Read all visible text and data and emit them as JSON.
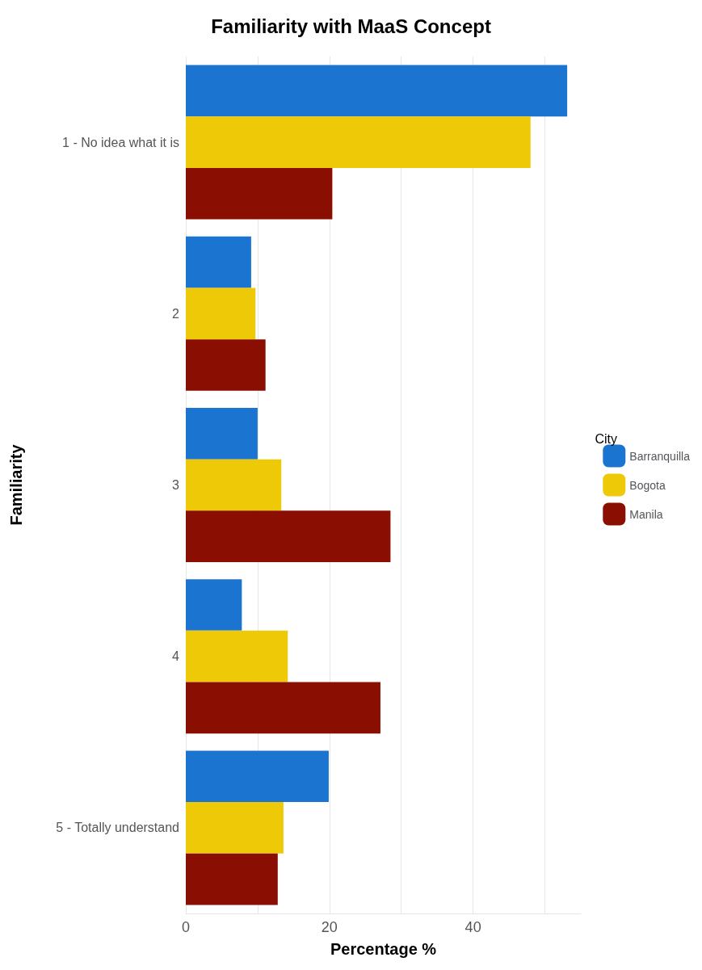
{
  "chart_data": {
    "type": "bar",
    "orientation": "horizontal",
    "title": "Familiarity with MaaS Concept",
    "xlabel": "Percentage %",
    "ylabel": "Familiarity",
    "legend_title": "City",
    "categories": [
      "1 - No idea what it is",
      "2",
      "3",
      "4",
      "5 - Totally understand"
    ],
    "series": [
      {
        "name": "Barranquilla",
        "color": "#1b75d0",
        "values": [
          53.1,
          9.1,
          10.0,
          7.8,
          19.9
        ]
      },
      {
        "name": "Bogota",
        "color": "#eec908",
        "values": [
          48.0,
          9.7,
          13.3,
          14.2,
          13.6
        ]
      },
      {
        "name": "Manila",
        "color": "#8b0e02",
        "values": [
          20.4,
          11.1,
          28.5,
          27.1,
          12.8
        ]
      }
    ],
    "xlim": [
      0,
      55
    ],
    "xticks": [
      0,
      {
        "value": 10,
        "label": null
      },
      20,
      {
        "value": 30,
        "label": null
      },
      40,
      {
        "value": 50,
        "label": null
      }
    ],
    "grid": "x",
    "legend": "right"
  }
}
